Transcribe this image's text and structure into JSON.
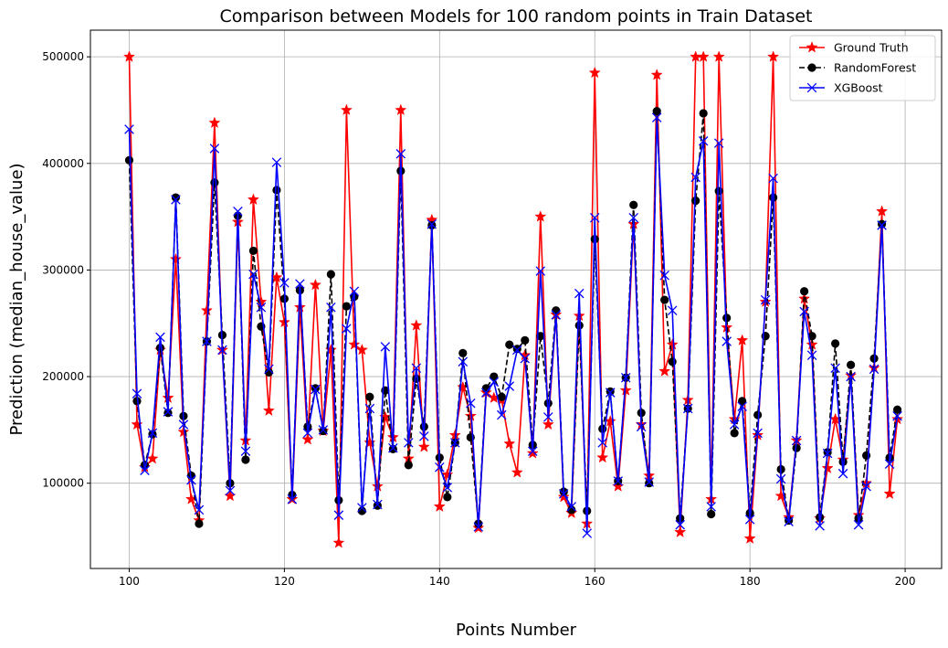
{
  "chart_data": {
    "type": "line",
    "title": "Comparison between Models for 100 random points in Train Dataset",
    "xlabel": "Points Number",
    "ylabel": "Prediction (median_house_value)",
    "xlim": [
      95,
      204.7
    ],
    "ylim": [
      20000,
      525000
    ],
    "xticks": [
      100,
      120,
      140,
      160,
      180,
      200
    ],
    "yticks": [
      100000,
      200000,
      300000,
      400000,
      500000
    ],
    "grid": true,
    "legend_position": "top-right",
    "x": [
      100,
      101,
      102,
      103,
      104,
      105,
      106,
      107,
      108,
      109,
      110,
      111,
      112,
      113,
      114,
      115,
      116,
      117,
      118,
      119,
      120,
      121,
      122,
      123,
      124,
      125,
      126,
      127,
      128,
      129,
      130,
      131,
      132,
      133,
      134,
      135,
      136,
      137,
      138,
      139,
      140,
      141,
      142,
      143,
      144,
      145,
      146,
      147,
      148,
      149,
      150,
      151,
      152,
      153,
      154,
      155,
      156,
      157,
      158,
      159,
      160,
      161,
      162,
      163,
      164,
      165,
      166,
      167,
      168,
      169,
      170,
      171,
      172,
      173,
      174,
      175,
      176,
      177,
      178,
      179,
      180,
      181,
      182,
      183,
      184,
      185,
      186,
      187,
      188,
      189,
      190,
      191,
      192,
      193,
      194,
      195,
      196,
      197,
      198,
      199
    ],
    "series": [
      {
        "name": "Ground Truth",
        "color": "#ff0000",
        "marker": "star",
        "linestyle": "solid",
        "values": [
          500000,
          155000,
          115000,
          123000,
          225000,
          180000,
          310000,
          148000,
          85000,
          65000,
          262000,
          438000,
          225000,
          88000,
          345000,
          140000,
          366000,
          270000,
          168000,
          293000,
          251000,
          85000,
          265000,
          141000,
          286000,
          149000,
          225000,
          44000,
          450000,
          230000,
          225000,
          138000,
          97000,
          162000,
          143000,
          450000,
          123000,
          248000,
          134000,
          347000,
          78000,
          108000,
          145000,
          190000,
          163000,
          58000,
          185000,
          180000,
          178000,
          137000,
          110000,
          220000,
          128000,
          350000,
          155000,
          258000,
          87000,
          72000,
          257000,
          62000,
          485000,
          124000,
          158000,
          97000,
          187000,
          343000,
          155000,
          107000,
          483000,
          205000,
          230000,
          54000,
          178000,
          500000,
          500000,
          85000,
          500000,
          246000,
          160000,
          234000,
          48000,
          145000,
          270000,
          500000,
          88000,
          68000,
          140000,
          273000,
          230000,
          67000,
          114000,
          160000,
          122000,
          201000,
          70000,
          100000,
          208000,
          355000,
          90000,
          160000
        ]
      },
      {
        "name": "RandomForest",
        "color": "#000000",
        "marker": "circle",
        "linestyle": "dashed",
        "values": [
          403000,
          177000,
          117000,
          146000,
          227000,
          166000,
          368000,
          163000,
          107000,
          62000,
          233000,
          382000,
          239000,
          100000,
          351000,
          122000,
          318000,
          247000,
          204000,
          375000,
          273000,
          89000,
          281000,
          153000,
          189000,
          149000,
          296000,
          84000,
          266000,
          275000,
          74000,
          181000,
          79000,
          187000,
          132000,
          393000,
          117000,
          198000,
          153000,
          342000,
          124000,
          87000,
          138000,
          222000,
          143000,
          62000,
          189000,
          200000,
          181000,
          230000,
          226000,
          234000,
          136000,
          238000,
          175000,
          262000,
          92000,
          75000,
          248000,
          74000,
          329000,
          151000,
          186000,
          102000,
          199000,
          361000,
          166000,
          100000,
          449000,
          272000,
          214000,
          67000,
          170000,
          365000,
          447000,
          71000,
          374000,
          255000,
          147000,
          177000,
          72000,
          164000,
          238000,
          368000,
          113000,
          65000,
          133000,
          280000,
          238000,
          68000,
          129000,
          231000,
          120000,
          211000,
          67000,
          126000,
          217000,
          343000,
          124000,
          169000
        ]
      },
      {
        "name": "XGBoost",
        "color": "#0000ff",
        "marker": "x",
        "linestyle": "solid",
        "values": [
          432000,
          184000,
          112000,
          147000,
          237000,
          167000,
          366000,
          155000,
          103000,
          75000,
          233000,
          414000,
          225000,
          93000,
          355000,
          130000,
          296000,
          265000,
          207000,
          401000,
          288000,
          85000,
          287000,
          147000,
          188000,
          150000,
          265000,
          70000,
          245000,
          280000,
          77000,
          170000,
          80000,
          228000,
          133000,
          409000,
          138000,
          208000,
          144000,
          343000,
          115000,
          96000,
          138000,
          214000,
          175000,
          59000,
          185000,
          195000,
          164000,
          191000,
          225000,
          217000,
          130000,
          299000,
          162000,
          258000,
          90000,
          78000,
          278000,
          53000,
          349000,
          138000,
          185000,
          102000,
          199000,
          349000,
          153000,
          101000,
          443000,
          295000,
          262000,
          61000,
          170000,
          387000,
          421000,
          78000,
          419000,
          233000,
          155000,
          172000,
          66000,
          147000,
          272000,
          386000,
          104000,
          64000,
          140000,
          261000,
          220000,
          60000,
          128000,
          208000,
          109000,
          200000,
          61000,
          97000,
          207000,
          342000,
          118000,
          163000
        ]
      }
    ]
  }
}
